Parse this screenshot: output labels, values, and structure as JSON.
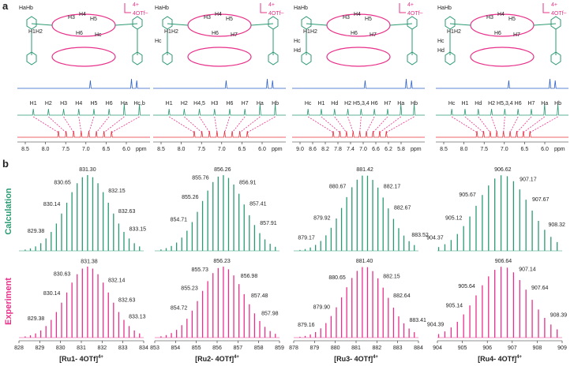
{
  "panel_a": {
    "label": "a",
    "charge": "4+",
    "counterion": "4OTf−",
    "axis_unit": "ppm",
    "columns": [
      {
        "structure_labels": [
          "HaHb",
          "H1H2",
          "H3",
          "H4",
          "H5",
          "H6",
          "Hc"
        ],
        "proton_labels": [
          "H1",
          "H2",
          "H3",
          "H4",
          "H5",
          "H6",
          "Ha",
          "Hc,b"
        ],
        "ppm_ticks": [
          8.5,
          8.0,
          7.5,
          7.0,
          6.5,
          6.0
        ]
      },
      {
        "structure_labels": [
          "HaHb",
          "H1H2",
          "H3",
          "H4",
          "H5",
          "H6",
          "H7",
          "Hc"
        ],
        "proton_labels": [
          "H1",
          "H2",
          "H4,5",
          "H3",
          "H6",
          "H7",
          "Ha",
          "Hb"
        ],
        "ppm_ticks": [
          8.5,
          8.0,
          7.5,
          7.0,
          6.5,
          6.0
        ]
      },
      {
        "structure_labels": [
          "HaHb",
          "H1H2",
          "H3",
          "H4",
          "H5",
          "H6",
          "H7",
          "Hc",
          "Hd"
        ],
        "proton_labels": [
          "Hc",
          "H1",
          "Hd",
          "H2",
          "H5,3,4",
          "H6",
          "H7",
          "Ha",
          "Hb"
        ],
        "ppm_ticks": [
          9.0,
          8.6,
          8.2,
          7.8,
          7.4,
          7.0,
          6.6,
          6.2,
          5.8
        ]
      },
      {
        "structure_labels": [
          "HaHb",
          "H1H2",
          "H3",
          "H4",
          "H5",
          "H6",
          "H7",
          "Hc",
          "Hd"
        ],
        "proton_labels": [
          "Hc",
          "H1",
          "Hd",
          "H2",
          "H5,3,4",
          "H6",
          "H7",
          "Ha",
          "Hb"
        ],
        "ppm_ticks": [
          8.5,
          8.0,
          7.5,
          7.0,
          6.5,
          6.0
        ]
      }
    ]
  },
  "panel_b": {
    "label": "b",
    "row_labels": [
      "Calculation",
      "Experiment"
    ],
    "columns": [
      {
        "name": "[Ru1- 4OTf]",
        "charge": "4+",
        "calc_peaks": [
          831.3,
          830.65,
          832.15,
          830.14,
          832.63,
          829.38,
          833.15
        ],
        "exp_peaks": [
          831.38,
          830.63,
          832.14,
          830.14,
          832.63,
          829.38,
          833.13
        ],
        "xticks": [
          828,
          829,
          830,
          831,
          832,
          833,
          834
        ]
      },
      {
        "name": "[Ru2- 4OTf]",
        "charge": "4+",
        "calc_peaks": [
          856.26,
          855.76,
          856.91,
          855.26,
          857.41,
          854.71,
          857.91
        ],
        "exp_peaks": [
          856.23,
          855.73,
          856.98,
          855.23,
          857.48,
          854.72,
          857.98
        ],
        "xticks": [
          853,
          854,
          855,
          856,
          857,
          858,
          859
        ]
      },
      {
        "name": "[Ru3- 4OTf]",
        "charge": "4+",
        "calc_peaks": [
          881.42,
          880.67,
          882.17,
          879.92,
          882.67,
          879.17,
          883.52
        ],
        "exp_peaks": [
          881.4,
          880.65,
          882.15,
          879.9,
          882.64,
          879.16,
          883.41
        ],
        "xticks": [
          878,
          879,
          880,
          881,
          882,
          883,
          884
        ]
      },
      {
        "name": "[Ru4- 4OTf]",
        "charge": "4+",
        "calc_peaks": [
          906.62,
          905.67,
          907.17,
          905.12,
          907.67,
          904.37,
          908.32
        ],
        "exp_peaks": [
          906.64,
          905.64,
          907.14,
          905.14,
          907.64,
          904.39,
          908.39
        ],
        "xticks": [
          904,
          905,
          906,
          907,
          908,
          909
        ]
      }
    ]
  }
}
